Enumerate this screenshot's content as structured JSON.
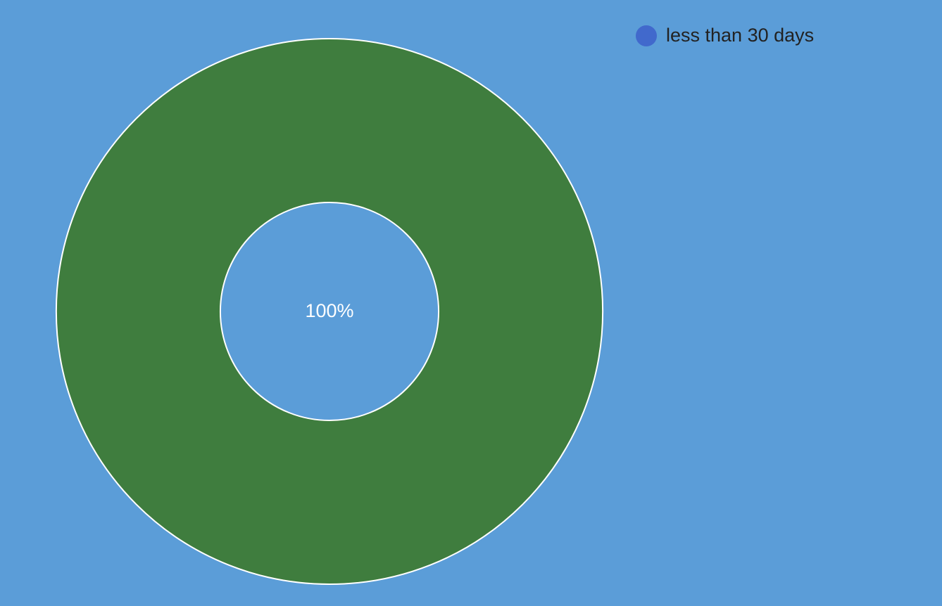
{
  "chart_data": {
    "type": "donut",
    "categories": [
      "less than 30 days"
    ],
    "values": [
      100
    ],
    "value_labels": [
      "100%"
    ],
    "colors": [
      "#3f7d3e"
    ],
    "legend_colors": [
      "#4169cc"
    ],
    "legend": "top-right"
  }
}
